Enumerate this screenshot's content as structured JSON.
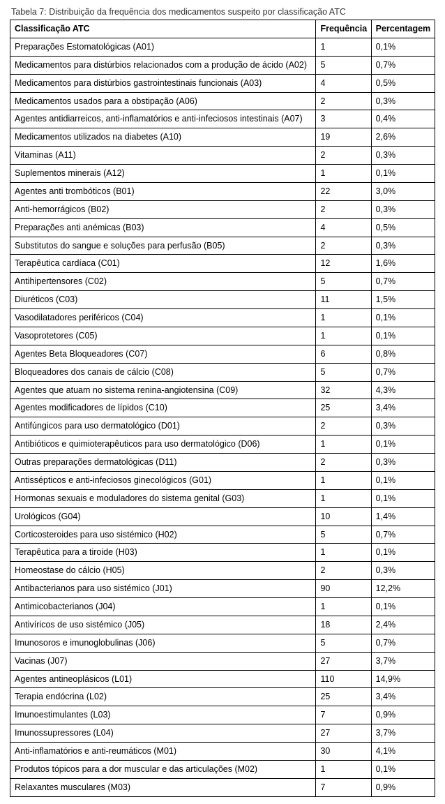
{
  "caption": "Tabela 7: Distribuição da frequência dos medicamentos suspeito por classificação ATC",
  "columns": [
    "Classificação ATC",
    "Frequência",
    "Percentagem"
  ],
  "rows": [
    [
      "Preparações Estomatológicas (A01)",
      "1",
      "0,1%"
    ],
    [
      "Medicamentos para distúrbios relacionados com a produção de ácido (A02)",
      "5",
      "0,7%"
    ],
    [
      "Medicamentos para distúrbios gastrointestinais funcionais (A03)",
      "4",
      "0,5%"
    ],
    [
      "Medicamentos usados para a obstipação (A06)",
      "2",
      "0,3%"
    ],
    [
      "Agentes antidiarreicos, anti-inflamatórios e anti-infeciosos intestinais (A07)",
      "3",
      "0,4%"
    ],
    [
      "Medicamentos utilizados na diabetes (A10)",
      "19",
      "2,6%"
    ],
    [
      "Vitaminas (A11)",
      "2",
      "0,3%"
    ],
    [
      "Suplementos minerais (A12)",
      "1",
      "0,1%"
    ],
    [
      "Agentes anti trombóticos (B01)",
      "22",
      "3,0%"
    ],
    [
      "Anti-hemorrágicos (B02)",
      "2",
      "0,3%"
    ],
    [
      "Preparações anti anémicas (B03)",
      "4",
      "0,5%"
    ],
    [
      "Substitutos do sangue e soluções para perfusão (B05)",
      "2",
      "0,3%"
    ],
    [
      "Terapêutica cardíaca (C01)",
      "12",
      "1,6%"
    ],
    [
      "Antihipertensores (C02)",
      "5",
      "0,7%"
    ],
    [
      "Diuréticos (C03)",
      "11",
      "1,5%"
    ],
    [
      "Vasodilatadores periféricos (C04)",
      "1",
      "0,1%"
    ],
    [
      "Vasoprotetores (C05)",
      "1",
      "0,1%"
    ],
    [
      "Agentes Beta Bloqueadores (C07)",
      "6",
      "0,8%"
    ],
    [
      "Bloqueadores dos canais de cálcio (C08)",
      "5",
      "0,7%"
    ],
    [
      "Agentes que atuam no sistema renina-angiotensina (C09)",
      "32",
      "4,3%"
    ],
    [
      "Agentes modificadores de lípidos (C10)",
      "25",
      "3,4%"
    ],
    [
      "Antifúngicos para uso dermatológico (D01)",
      "2",
      "0,3%"
    ],
    [
      "Antibióticos e quimioterapêuticos para uso dermatológico (D06)",
      "1",
      "0,1%"
    ],
    [
      "Outras preparações dermatológicas (D11)",
      "2",
      "0,3%"
    ],
    [
      "Antissépticos e anti-infeciosos ginecológicos (G01)",
      "1",
      "0,1%"
    ],
    [
      "Hormonas sexuais e moduladores do sistema genital (G03)",
      "1",
      "0,1%"
    ],
    [
      "Urológicos (G04)",
      "10",
      "1,4%"
    ],
    [
      "Corticosteroides para uso sistémico (H02)",
      "5",
      "0,7%"
    ],
    [
      "Terapêutica para a tiroide (H03)",
      "1",
      "0,1%"
    ],
    [
      "Homeostase do cálcio (H05)",
      "2",
      "0,3%"
    ],
    [
      "Antibacterianos para uso sistémico (J01)",
      "90",
      "12,2%"
    ],
    [
      "Antimicobacterianos (J04)",
      "1",
      "0,1%"
    ],
    [
      "Antivíricos de uso sistémico (J05)",
      "18",
      "2,4%"
    ],
    [
      "Imunosoros e imunoglobulinas (J06)",
      "5",
      "0,7%"
    ],
    [
      "Vacinas (J07)",
      "27",
      "3,7%"
    ],
    [
      "Agentes antineoplásicos (L01)",
      "110",
      "14,9%"
    ],
    [
      "Terapia endócrina (L02)",
      "25",
      "3,4%"
    ],
    [
      "Imunoestimulantes (L03)",
      "7",
      "0,9%"
    ],
    [
      "Imunossupressores (L04)",
      "27",
      "3,7%"
    ],
    [
      "Anti-inflamatórios e anti-reumáticos (M01)",
      "30",
      "4,1%"
    ],
    [
      "Produtos tópicos para a dor muscular e das articulações (M02)",
      "1",
      "0,1%"
    ],
    [
      "Relaxantes musculares (M03)",
      "7",
      "0,9%"
    ]
  ]
}
